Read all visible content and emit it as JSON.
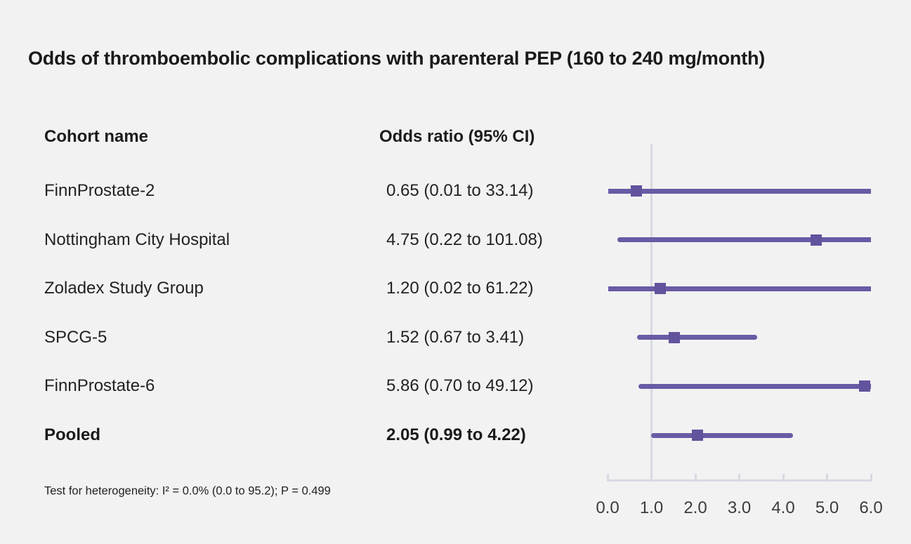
{
  "title": "Odds of thromboembolic complications with parenteral PEP (160 to 240 mg/month)",
  "columns": {
    "cohort": "Cohort name",
    "odds_ratio": "Odds ratio (95% CI)"
  },
  "footnote": "Test for heterogeneity: I² = 0.0% (0.0 to 95.2); P = 0.499",
  "colors": {
    "background": "#f2f2f2",
    "bar": "#695aa5",
    "marker": "#63539d",
    "reference_line": "#d6dae2",
    "axis_line": "#d6dae2",
    "text_primary": "#1a1a1a",
    "text_secondary": "#3d3d3d"
  },
  "chart_data": {
    "type": "forest",
    "title": "Odds of thromboembolic complications with parenteral PEP (160 to 240 mg/month)",
    "xlabel": "Odds ratio",
    "xlim": [
      0.0,
      6.0
    ],
    "x_ticks": [
      0.0,
      1.0,
      2.0,
      3.0,
      4.0,
      5.0,
      6.0
    ],
    "x_tick_labels": [
      "0.0",
      "1.0",
      "2.0",
      "3.0",
      "4.0",
      "5.0",
      "6.0"
    ],
    "reference_line": 1.0,
    "grid": false,
    "rows": [
      {
        "name": "FinnProstate-2",
        "or": 0.65,
        "ci_low": 0.01,
        "ci_high": 33.14,
        "label": "0.65 (0.01 to 33.14)",
        "bold": false
      },
      {
        "name": "Nottingham City Hospital",
        "or": 4.75,
        "ci_low": 0.22,
        "ci_high": 101.08,
        "label": "4.75 (0.22 to 101.08)",
        "bold": false
      },
      {
        "name": "Zoladex Study Group",
        "or": 1.2,
        "ci_low": 0.02,
        "ci_high": 61.22,
        "label": "1.20 (0.02 to 61.22)",
        "bold": false
      },
      {
        "name": "SPCG-5",
        "or": 1.52,
        "ci_low": 0.67,
        "ci_high": 3.41,
        "label": "1.52 (0.67 to 3.41)",
        "bold": false
      },
      {
        "name": "FinnProstate-6",
        "or": 5.86,
        "ci_low": 0.7,
        "ci_high": 49.12,
        "label": "5.86 (0.70 to 49.12)",
        "bold": false
      },
      {
        "name": "Pooled",
        "or": 2.05,
        "ci_low": 0.99,
        "ci_high": 4.22,
        "label": "2.05 (0.99 to 4.22)",
        "bold": true
      }
    ]
  }
}
